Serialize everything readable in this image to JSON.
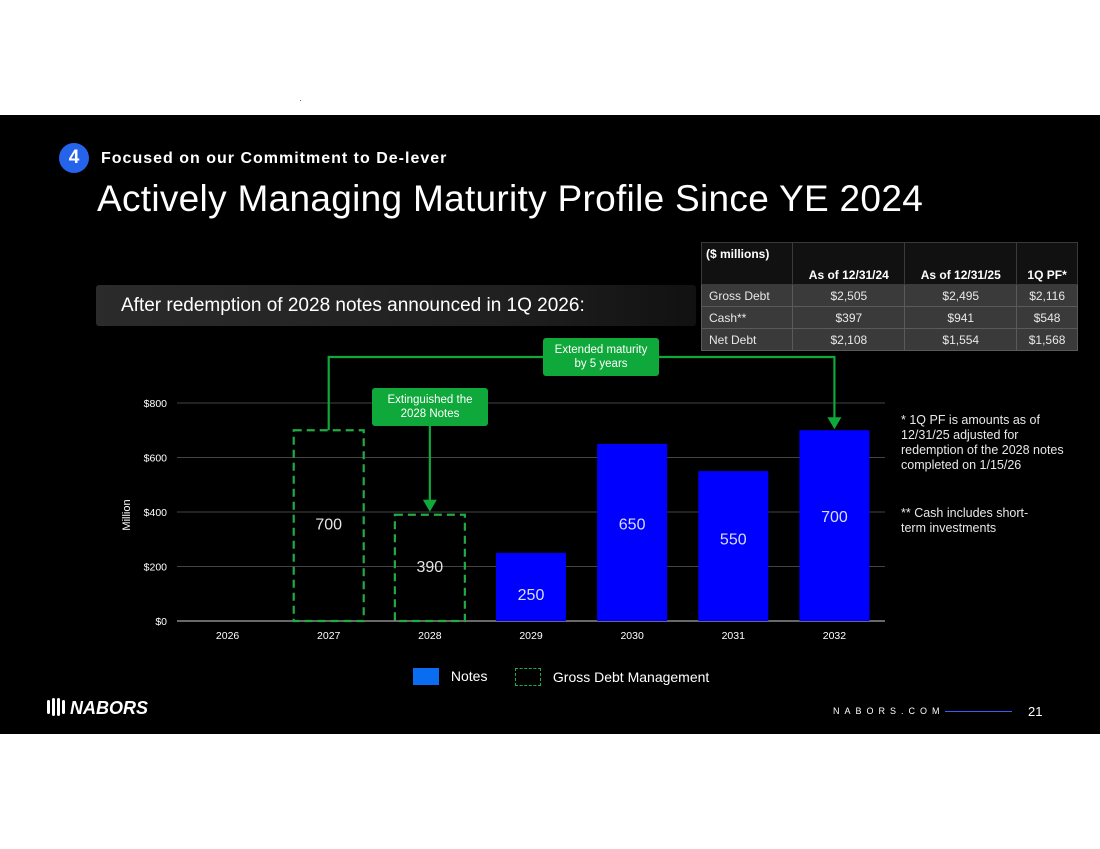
{
  "header": {
    "section_number": "4",
    "section_label": "Focused on our Commitment to De-lever",
    "title": "Actively Managing Maturity Profile Since YE 2024"
  },
  "banner": {
    "text": "After redemption of 2028 notes announced in 1Q 2026:"
  },
  "table": {
    "headers": [
      "($ millions)",
      "As of 12/31/24",
      "As of 12/31/25",
      "1Q PF*"
    ],
    "rows": [
      [
        "Gross Debt",
        "$2,505",
        "$2,495",
        "$2,116"
      ],
      [
        "Cash**",
        "$397",
        "$941",
        "$548"
      ],
      [
        "Net Debt",
        "$2,108",
        "$1,554",
        "$1,568"
      ]
    ]
  },
  "notes": {
    "pf_note": "* 1Q PF is amounts as of 12/31/25 adjusted for redemption of the 2028 notes completed on 1/15/26",
    "cash_note": "** Cash includes short-term investments"
  },
  "callouts": {
    "extended": [
      "Extended maturity",
      "by 5 years"
    ],
    "extinguished": [
      "Extinguished the",
      "2028 Notes"
    ]
  },
  "chart_data": {
    "type": "bar",
    "categories": [
      "2026",
      "2027",
      "2028",
      "2029",
      "2030",
      "2031",
      "2032"
    ],
    "series": [
      {
        "name": "Notes",
        "values": [
          null,
          null,
          null,
          250,
          650,
          550,
          700
        ]
      },
      {
        "name": "Gross Debt Management",
        "values": [
          null,
          700,
          390,
          null,
          null,
          null,
          null
        ]
      }
    ],
    "data_labels": [
      "",
      "700",
      "390",
      "250",
      "650",
      "550",
      "700"
    ],
    "y_ticks": [
      "$0",
      "$200",
      "$400",
      "$600",
      "$800"
    ],
    "ylabel": "Million",
    "ylim": [
      0,
      800
    ],
    "grid": true,
    "colors": {
      "notes": "#0000ff",
      "gross_debt_management": "#22aa44",
      "callout": "#0fa83a"
    }
  },
  "legend": {
    "notes": "Notes",
    "gross": "Gross Debt Management"
  },
  "footer": {
    "logo": "NABORS",
    "website": "NABORS.COM",
    "page": "21"
  }
}
